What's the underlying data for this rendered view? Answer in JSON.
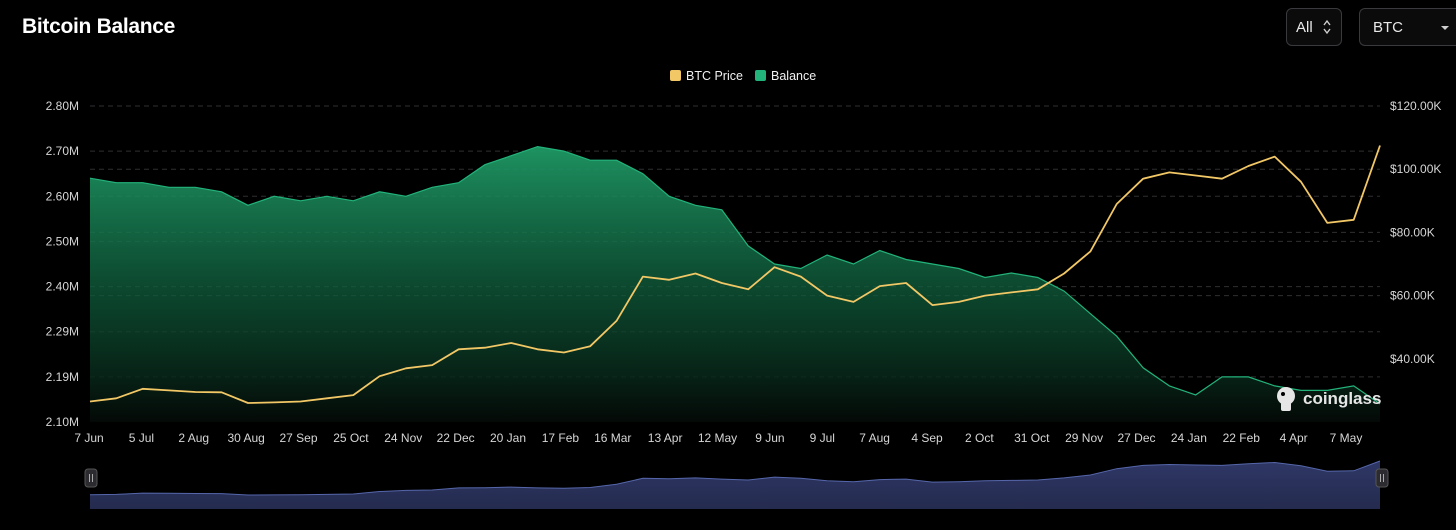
{
  "header": {
    "title": "Bitcoin Balance",
    "range_select": {
      "value": "All",
      "icon": "up-down-chevron-icon"
    },
    "coin_select": {
      "value": "BTC",
      "icon": "caret-down-icon"
    }
  },
  "watermark": {
    "text": "coinglass",
    "icon": "coinglass-logo-icon"
  },
  "colors": {
    "background": "#000000",
    "price_line": "#f2c766",
    "balance_fill_top": "#1f9a66",
    "balance_line": "#22b37a",
    "grid": "#2f2f33",
    "navigator_fill": "#2a3159",
    "navigator_line": "#5566aa"
  },
  "chart_data": {
    "type": "area",
    "title": "",
    "legend": {
      "placement": "top-center",
      "entries": [
        "BTC Price",
        "Balance"
      ]
    },
    "grid": true,
    "x_tick_labels": [
      "7 Jun",
      "5 Jul",
      "2 Aug",
      "30 Aug",
      "27 Sep",
      "25 Oct",
      "24 Nov",
      "22 Dec",
      "20 Jan",
      "17 Feb",
      "16 Mar",
      "13 Apr",
      "12 May",
      "9 Jun",
      "9 Jul",
      "7 Aug",
      "4 Sep",
      "2 Oct",
      "31 Oct",
      "29 Nov",
      "27 Dec",
      "24 Jan",
      "22 Feb",
      "4 Apr",
      "7 May"
    ],
    "y_left": {
      "label": "",
      "range": [
        2.1,
        2.8
      ],
      "unit": "M",
      "tick_labels": [
        "2.10M",
        "2.19M",
        "2.29M",
        "2.40M",
        "2.50M",
        "2.60M",
        "2.70M",
        "2.80M"
      ]
    },
    "y_right": {
      "label": "",
      "range": [
        20000,
        120000
      ],
      "unit": "USD",
      "tick_labels": [
        "$40.00K",
        "$60.00K",
        "$80.00K",
        "$100.00K",
        "$120.00K"
      ]
    },
    "series": [
      {
        "name": "Balance",
        "type": "area",
        "axis": "left",
        "x": [
          "7 Jun",
          "21 Jun",
          "5 Jul",
          "19 Jul",
          "2 Aug",
          "16 Aug",
          "30 Aug",
          "13 Sep",
          "27 Sep",
          "11 Oct",
          "25 Oct",
          "10 Nov",
          "24 Nov",
          "8 Dec",
          "22 Dec",
          "6 Jan",
          "20 Jan",
          "3 Feb",
          "17 Feb",
          "2 Mar",
          "16 Mar",
          "30 Mar",
          "13 Apr",
          "27 Apr",
          "12 May",
          "26 May",
          "9 Jun",
          "23 Jun",
          "9 Jul",
          "23 Jul",
          "7 Aug",
          "21 Aug",
          "4 Sep",
          "18 Sep",
          "2 Oct",
          "16 Oct",
          "31 Oct",
          "15 Nov",
          "29 Nov",
          "13 Dec",
          "27 Dec",
          "10 Jan",
          "24 Jan",
          "7 Feb",
          "22 Feb",
          "15 Mar",
          "4 Apr",
          "20 Apr",
          "7 May",
          "20 May"
        ],
        "values": [
          2.64,
          2.63,
          2.63,
          2.62,
          2.62,
          2.61,
          2.58,
          2.6,
          2.59,
          2.6,
          2.59,
          2.61,
          2.6,
          2.62,
          2.63,
          2.67,
          2.69,
          2.71,
          2.7,
          2.68,
          2.68,
          2.65,
          2.6,
          2.58,
          2.57,
          2.49,
          2.45,
          2.44,
          2.47,
          2.45,
          2.48,
          2.46,
          2.45,
          2.44,
          2.42,
          2.43,
          2.42,
          2.39,
          2.34,
          2.29,
          2.22,
          2.18,
          2.16,
          2.2,
          2.2,
          2.18,
          2.17,
          2.17,
          2.18,
          2.14
        ]
      },
      {
        "name": "BTC Price",
        "type": "line",
        "axis": "right",
        "x": [
          "7 Jun",
          "21 Jun",
          "5 Jul",
          "19 Jul",
          "2 Aug",
          "16 Aug",
          "30 Aug",
          "13 Sep",
          "27 Sep",
          "11 Oct",
          "25 Oct",
          "10 Nov",
          "24 Nov",
          "8 Dec",
          "22 Dec",
          "6 Jan",
          "20 Jan",
          "3 Feb",
          "17 Feb",
          "2 Mar",
          "16 Mar",
          "30 Mar",
          "13 Apr",
          "27 Apr",
          "12 May",
          "26 May",
          "9 Jun",
          "23 Jun",
          "9 Jul",
          "23 Jul",
          "7 Aug",
          "21 Aug",
          "4 Sep",
          "18 Sep",
          "2 Oct",
          "16 Oct",
          "31 Oct",
          "15 Nov",
          "29 Nov",
          "13 Dec",
          "27 Dec",
          "10 Jan",
          "24 Jan",
          "7 Feb",
          "22 Feb",
          "15 Mar",
          "4 Apr",
          "20 Apr",
          "7 May",
          "20 May"
        ],
        "values": [
          26500,
          27500,
          30500,
          30000,
          29500,
          29400,
          26000,
          26200,
          26500,
          27500,
          28500,
          34500,
          37000,
          38000,
          43000,
          43500,
          45000,
          43000,
          42000,
          44000,
          52000,
          66000,
          65000,
          67000,
          64000,
          62000,
          69000,
          66000,
          60000,
          58000,
          63000,
          64000,
          57000,
          58000,
          60000,
          61000,
          62000,
          67000,
          74000,
          89000,
          97000,
          99000,
          98000,
          97000,
          101000,
          104000,
          96000,
          83000,
          84000,
          107500
        ]
      }
    ]
  }
}
